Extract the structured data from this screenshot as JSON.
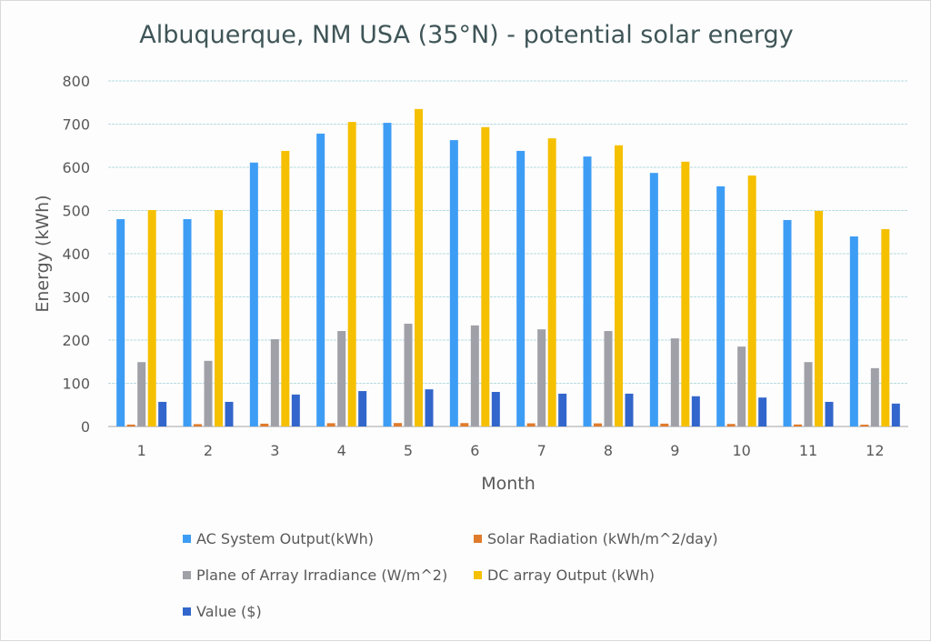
{
  "chart_data": {
    "type": "bar",
    "title": "Albuquerque, NM USA (35°N) - potential solar energy",
    "xlabel": "Month",
    "ylabel": "Energy (kWh)",
    "ylim": [
      0,
      800
    ],
    "yticks": [
      0,
      100,
      200,
      300,
      400,
      500,
      600,
      700,
      800
    ],
    "grid": true,
    "legend_position": "bottom",
    "categories": [
      "1",
      "2",
      "3",
      "4",
      "5",
      "6",
      "7",
      "8",
      "9",
      "10",
      "11",
      "12"
    ],
    "series": [
      {
        "name": "AC System Output(kWh)",
        "color": "#3d9df5",
        "values": [
          480,
          480,
          611,
          678,
          703,
          663,
          638,
          625,
          587,
          556,
          478,
          440
        ]
      },
      {
        "name": "Solar Radiation (kWh/m^2/day)",
        "color": "#e07b2c",
        "values": [
          4.4,
          5.4,
          6.5,
          7.6,
          8.0,
          7.9,
          7.3,
          7.2,
          6.6,
          5.8,
          4.6,
          4.2
        ]
      },
      {
        "name": "Plane of Array Irradiance (W/m^2)",
        "color": "#a0a0a8",
        "values": [
          149,
          152,
          202,
          221,
          238,
          234,
          225,
          221,
          204,
          185,
          149,
          135
        ]
      },
      {
        "name": "DC array Output (kWh)",
        "color": "#f5c000",
        "values": [
          501,
          501,
          638,
          705,
          735,
          693,
          667,
          651,
          613,
          581,
          499,
          457
        ]
      },
      {
        "name": "Value ($)",
        "color": "#3366cc",
        "values": [
          57,
          57,
          74,
          82,
          86,
          80,
          76,
          76,
          70,
          67,
          57,
          53
        ]
      }
    ]
  }
}
